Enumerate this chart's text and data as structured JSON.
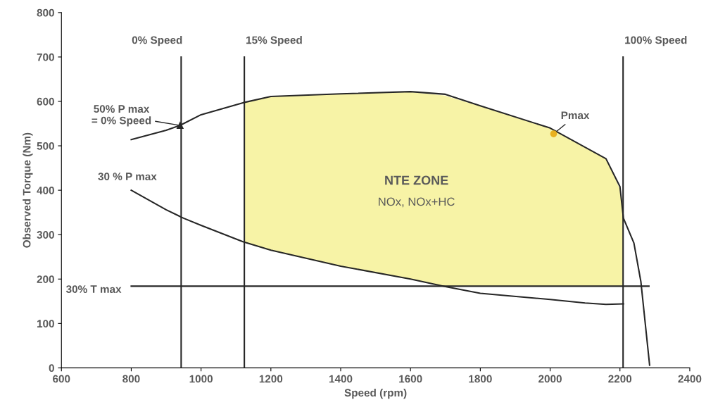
{
  "chart_data": {
    "type": "line",
    "xlabel": "Speed (rpm)",
    "ylabel": "Observed Torque (Nm)",
    "xlim": [
      600,
      2400
    ],
    "xticks": [
      600,
      800,
      1000,
      1200,
      1400,
      1600,
      1800,
      2000,
      2200,
      2400
    ],
    "ylim": [
      0,
      800
    ],
    "yticks": [
      0,
      100,
      200,
      300,
      400,
      500,
      600,
      700,
      800
    ],
    "grid": false,
    "legend": false,
    "series": [
      {
        "color": "#f7f3a6",
        "x": [
          1124,
          1200,
          1400,
          1600,
          1700,
          1800,
          2000,
          2160,
          2200,
          2209
        ],
        "values": [
          598,
          611,
          616,
          620,
          612,
          588,
          538,
          470,
          400,
          340
        ],
        "upper": [
          598,
          611,
          616,
          620,
          612,
          588,
          538,
          470,
          400,
          340
        ],
        "lower": [
          283,
          265,
          229,
          200,
          184,
          184,
          184,
          184,
          184,
          184
        ]
      },
      {
        "color": "#262626",
        "x": [
          800,
          900,
          940,
          1000,
          1120,
          1200,
          1400,
          1600,
          1700,
          1800,
          2000,
          2160,
          2200,
          2210,
          2240,
          2260,
          2285
        ],
        "values": [
          514,
          535,
          546,
          570,
          597,
          611,
          617,
          622,
          616,
          590,
          540,
          471,
          408,
          337,
          281,
          194,
          6
        ]
      },
      {
        "name": "30 % P max",
        "color": "#262626",
        "x": [
          800,
          900,
          950,
          1000,
          1120,
          1200,
          1400,
          1600,
          1700,
          1800,
          2000,
          2100,
          2160,
          2210
        ],
        "values": [
          400,
          356,
          337,
          321,
          284,
          265,
          229,
          200,
          183,
          168,
          154,
          146,
          143,
          144
        ]
      },
      {
        "name": "30% T max",
        "color": "#262626",
        "x": [
          800,
          2283
        ],
        "values": [
          184,
          184
        ]
      }
    ],
    "ref_lines": [
      {
        "axis": "x",
        "value": 943,
        "label": "0% Speed",
        "color": "#262626"
      },
      {
        "axis": "x",
        "value": 1124,
        "label": "15% Speed",
        "color": "#262626"
      },
      {
        "axis": "x",
        "value": 2209,
        "label": "100% Speed",
        "color": "#262626"
      }
    ],
    "annotations": [
      {
        "text": "50% P max\n= 0% Speed",
        "x": 940,
        "y": 546
      },
      {
        "text": "Pmax",
        "x": 2010,
        "y": 527
      },
      "NTE ZONE",
      "NOx, NOx+HC"
    ]
  }
}
